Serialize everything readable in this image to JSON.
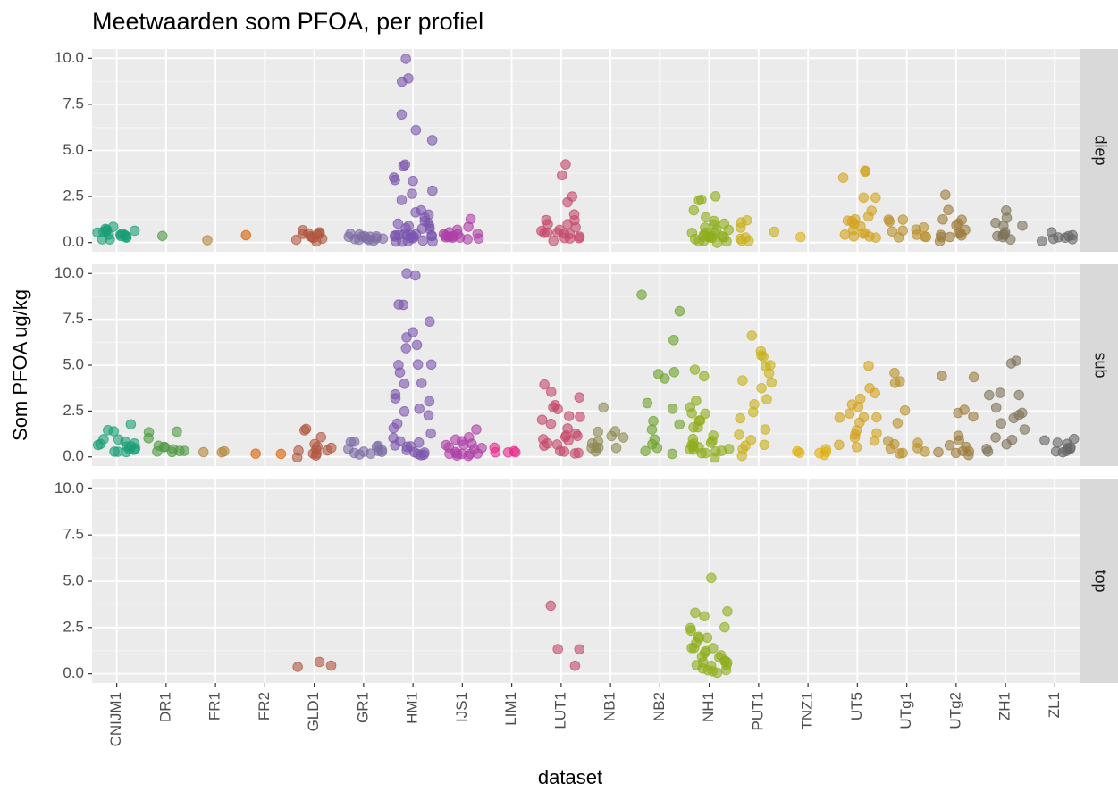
{
  "chart_data": {
    "type": "scatter",
    "title": "Meetwaarden som PFOA, per profiel",
    "x_label": "dataset",
    "y_label": "Som PFOA ug/kg",
    "categories": [
      "CNIJM1",
      "DR1",
      "FR1",
      "FR2",
      "GLD1",
      "GR1",
      "HM1",
      "IJS1",
      "LIM1",
      "LUT1",
      "NB1",
      "NB2",
      "NH1",
      "PUT1",
      "TNZ1",
      "UT5",
      "UTg1",
      "UTg2",
      "ZH1",
      "ZL1"
    ],
    "colors": [
      "#1b9e77",
      "#4f9a43",
      "#b5863a",
      "#d95f02",
      "#b0563f",
      "#7d6ca5",
      "#7b55ad",
      "#ad3fa6",
      "#e7298a",
      "#c5496b",
      "#8f8a52",
      "#6ca22b",
      "#8eae1c",
      "#c8b01a",
      "#dfb113",
      "#d2a21c",
      "#b9912c",
      "#9c7c3a",
      "#7e7358",
      "#666666"
    ],
    "ylim": [
      -0.5,
      10.5
    ],
    "yticks": [
      {
        "value": 0,
        "label": "0.0"
      },
      {
        "value": 2.5,
        "label": "2.5"
      },
      {
        "value": 5,
        "label": "5.0"
      },
      {
        "value": 7.5,
        "label": "7.5"
      },
      {
        "value": 10,
        "label": "10.0"
      }
    ],
    "grid": true,
    "facets": [
      {
        "label": "diep",
        "values": [
          [
            0.3,
            0.5,
            0.6,
            0.7,
            0.4,
            0.3,
            0.5,
            0.6,
            0.3,
            0.4,
            0.7,
            0.5,
            0.3,
            0.6,
            0.9,
            0.4,
            0.3
          ],
          [
            0.3
          ],
          [
            0.2
          ],
          [
            0.3
          ],
          [
            0.2,
            0.4,
            0.5,
            0.3,
            0.1,
            0.5,
            0.6,
            0.4,
            0.2,
            0.3,
            0.5,
            0.2
          ],
          [
            0.2,
            0.2,
            0.3,
            0.2,
            0.2,
            0.5,
            0.2,
            0.3,
            0.2,
            0.2,
            0.2,
            0.3,
            0.2,
            0.2
          ],
          [
            10.0,
            8.8,
            8.7,
            6.9,
            6.1,
            5.7,
            4.1,
            4.1,
            3.6,
            3.5,
            3.4,
            2.9,
            2.7,
            2.3,
            1.7,
            1.6,
            1.5,
            1.4,
            1.2,
            1.0,
            1.0,
            0.8,
            0.8,
            0.6,
            0.5,
            0.5,
            0.4,
            0.4,
            0.3,
            0.3,
            0.3,
            0.2,
            0.2,
            0.2,
            0.2,
            0.1,
            0.1,
            0.6,
            0.9,
            1.1,
            0.7,
            0.3,
            0.2
          ],
          [
            1.2,
            0.8,
            0.6,
            0.5,
            0.4,
            0.4,
            0.3,
            0.3,
            0.3,
            0.2,
            0.2,
            0.5,
            0.6,
            0.3,
            0.2,
            0.4
          ],
          [],
          [
            4.3,
            3.6,
            2.5,
            2.2,
            1.5,
            1.3,
            1.0,
            0.9,
            0.8,
            0.7,
            0.6,
            0.5,
            0.5,
            0.4,
            0.4,
            0.3,
            0.3,
            0.2,
            0.2,
            0.6,
            1.1,
            0.3
          ],
          [],
          [],
          [
            2.4,
            2.4,
            2.3,
            1.7,
            1.5,
            1.1,
            1.0,
            0.9,
            0.8,
            0.7,
            0.6,
            0.5,
            0.5,
            0.4,
            0.4,
            0.3,
            0.3,
            0.3,
            0.2,
            0.2,
            0.2,
            0.2,
            0.1,
            0.1,
            0.6,
            0.4,
            0.3
          ],
          [
            1.1,
            1.0,
            0.9,
            0.5,
            0.4,
            0.2,
            0.2,
            0.3
          ],
          [
            0.2
          ],
          [
            4.0,
            3.9,
            3.5,
            2.5,
            2.4,
            1.7,
            1.5,
            1.3,
            1.2,
            1.1,
            1.0,
            0.9,
            0.6,
            0.5,
            0.3,
            0.3,
            0.2,
            0.3,
            0.8
          ],
          [
            1.3,
            1.2,
            1.1,
            0.9,
            0.7,
            0.5,
            0.4,
            0.3,
            0.2,
            0.2,
            0.6
          ],
          [
            2.6,
            1.7,
            1.3,
            1.1,
            1.0,
            0.9,
            0.8,
            0.6,
            0.4,
            0.3,
            0.3,
            0.2,
            0.2,
            0.5
          ],
          [
            1.6,
            1.2,
            1.0,
            0.9,
            0.8,
            0.6,
            0.5,
            0.4,
            0.4,
            0.3,
            0.3
          ],
          [
            0.5,
            0.4,
            0.4,
            0.3,
            0.3,
            0.3,
            0.2,
            0.2
          ]
        ]
      },
      {
        "label": "sub",
        "values": [
          [
            1.7,
            1.4,
            1.3,
            1.0,
            0.9,
            0.8,
            0.7,
            0.6,
            0.5,
            0.5,
            0.4,
            0.3,
            0.3,
            0.3,
            0.4,
            0.6,
            0.8
          ],
          [
            1.3,
            1.2,
            1.0,
            0.7,
            0.6,
            0.5,
            0.4,
            0.4,
            0.3,
            0.3,
            0.2
          ],
          [
            0.3,
            0.2,
            0.3
          ],
          [
            0.2,
            0.2
          ],
          [
            1.5,
            1.5,
            1.2,
            0.8,
            0.6,
            0.5,
            0.4,
            0.3,
            0.3,
            0.2,
            0.2,
            0.1,
            0.4
          ],
          [
            0.9,
            0.7,
            0.6,
            0.5,
            0.4,
            0.3,
            0.3,
            0.3,
            0.2,
            0.2,
            0.2,
            0.4
          ],
          [
            9.9,
            9.8,
            8.4,
            8.2,
            7.5,
            6.9,
            6.6,
            6.2,
            6.0,
            5.1,
            5.0,
            4.9,
            4.6,
            4.1,
            3.9,
            3.5,
            3.3,
            2.9,
            2.7,
            2.5,
            2.2,
            1.8,
            1.5,
            1.2,
            1.0,
            0.9,
            0.8,
            0.7,
            0.6,
            0.5,
            0.4,
            0.3,
            0.3,
            0.2,
            0.2,
            0.1
          ],
          [
            1.4,
            1.1,
            1.0,
            0.9,
            0.8,
            0.7,
            0.6,
            0.5,
            0.4,
            0.3,
            0.3,
            0.2,
            0.2,
            0.1,
            0.1,
            0.4,
            0.6,
            0.2
          ],
          [
            0.6,
            0.3,
            0.3,
            0.3,
            0.2
          ],
          [
            4.0,
            3.5,
            3.2,
            2.9,
            2.7,
            2.5,
            2.3,
            2.1,
            1.9,
            1.7,
            1.5,
            1.3,
            1.1,
            1.0,
            0.9,
            0.8,
            0.7,
            0.5,
            0.4,
            0.3,
            0.2,
            0.2,
            0.6,
            1.2
          ],
          [
            1.4,
            1.3,
            1.1,
            1.0,
            0.8,
            0.7,
            0.6,
            0.6,
            0.5,
            0.4,
            0.3,
            2.6
          ],
          [
            8.7,
            7.8,
            6.3,
            4.6,
            4.4,
            4.3,
            3.0,
            2.6,
            2.0,
            1.9,
            1.5,
            1.0,
            0.8,
            0.5,
            0.3,
            0.3
          ],
          [
            4.7,
            4.4,
            3.2,
            2.8,
            2.5,
            2.3,
            2.1,
            1.9,
            1.7,
            1.5,
            1.2,
            1.0,
            0.9,
            0.8,
            0.7,
            0.6,
            0.5,
            0.4,
            0.3,
            0.3,
            0.2,
            0.2,
            0.1,
            0.1,
            0.5,
            0.4
          ],
          [
            6.6,
            5.7,
            5.6,
            5.5,
            5.0,
            4.8,
            4.5,
            4.2,
            4.0,
            3.8,
            3.2,
            2.8,
            2.5,
            2.0,
            1.5,
            1.3,
            1.0,
            0.8,
            0.5,
            0.3,
            0.2
          ],
          [
            0.5,
            0.3,
            0.2,
            0.2,
            0.3,
            0.3
          ],
          [
            5.1,
            3.8,
            3.6,
            3.3,
            3.0,
            2.8,
            2.5,
            2.2,
            2.1,
            2.0,
            1.8,
            1.5,
            1.3,
            1.1,
            1.0,
            0.8,
            0.6,
            0.5
          ],
          [
            4.5,
            4.2,
            4.0,
            2.5,
            1.8,
            1.0,
            0.9,
            0.7,
            0.5,
            0.4,
            0.3,
            0.2,
            0.1
          ],
          [
            4.3,
            4.3,
            2.5,
            2.5,
            2.3,
            1.2,
            0.9,
            0.7,
            0.5,
            0.4,
            0.3,
            0.2,
            0.2,
            0.1
          ],
          [
            5.3,
            5.2,
            3.4,
            3.4,
            3.3,
            2.7,
            2.4,
            2.2,
            2.0,
            1.8,
            1.5,
            1.2,
            0.8,
            0.6,
            0.5,
            0.3
          ],
          [
            1.1,
            0.9,
            0.8,
            0.6,
            0.5,
            0.4,
            0.3,
            0.3,
            0.2,
            0.2
          ]
        ]
      },
      {
        "label": "top",
        "values": [
          [],
          [],
          [],
          [],
          [
            0.5,
            0.3,
            0.3
          ],
          [],
          [],
          [],
          [],
          [
            3.6,
            1.4,
            1.3,
            0.4
          ],
          [],
          [],
          [
            5.3,
            3.5,
            3.2,
            3.0,
            2.5,
            2.4,
            2.2,
            2.0,
            1.9,
            1.8,
            1.7,
            1.5,
            1.4,
            1.3,
            1.2,
            1.1,
            1.0,
            0.9,
            0.8,
            0.7,
            0.6,
            0.5,
            0.5,
            0.4,
            0.3,
            0.3,
            0.2,
            0.2,
            0.1,
            0.6,
            0.9
          ],
          [],
          [],
          [],
          [],
          [],
          [],
          []
        ]
      }
    ]
  }
}
